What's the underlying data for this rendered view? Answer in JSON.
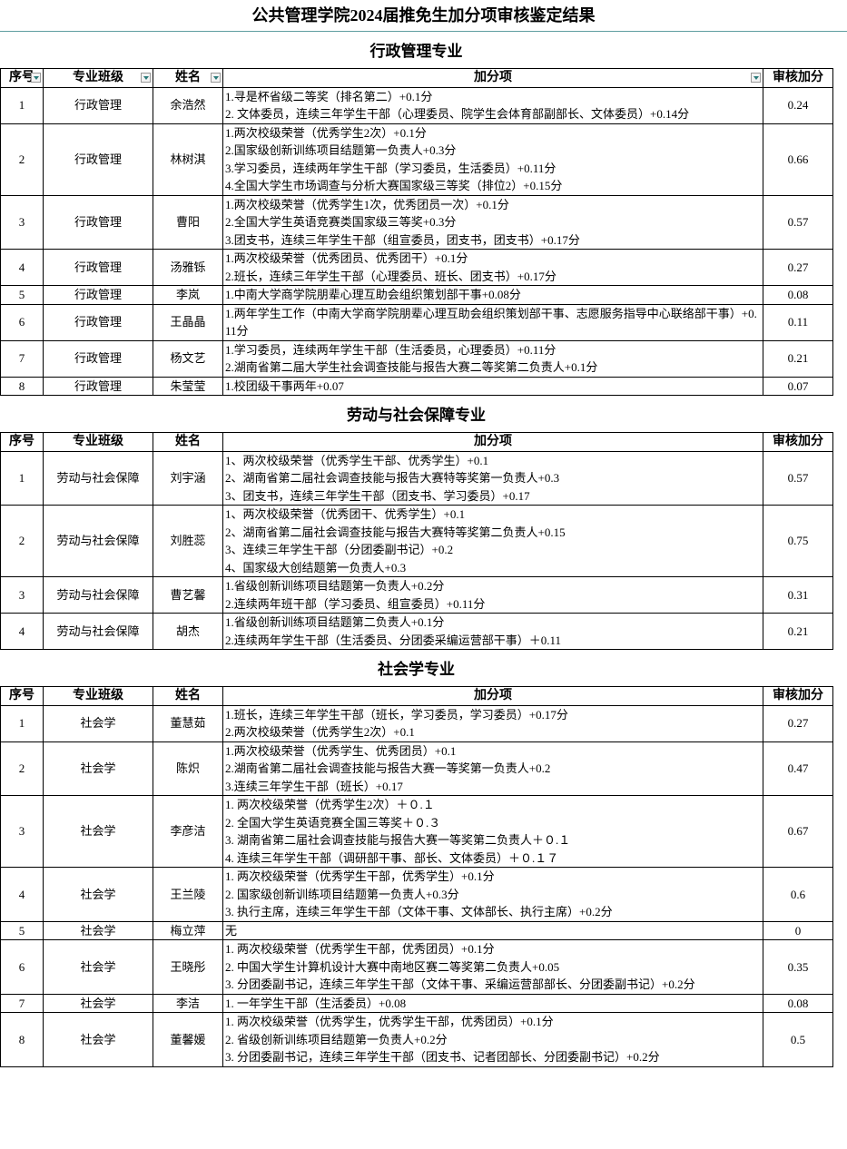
{
  "title": "公共管理学院2024届推免生加分项审核鉴定结果",
  "columns": [
    "序号",
    "专业班级",
    "姓名",
    "加分项",
    "审核加分"
  ],
  "sections": [
    {
      "title": "行政管理专业",
      "rows": [
        [
          "1",
          "行政管理",
          "余浩然",
          [
            "1.寻是杯省级二等奖（排名第二）+0.1分",
            "2. 文体委员，连续三年学生干部（心理委员、院学生会体育部副部长、文体委员）+0.14分"
          ],
          "0.24"
        ],
        [
          "2",
          "行政管理",
          "林树淇",
          [
            "1.两次校级荣誉（优秀学生2次）+0.1分",
            "2.国家级创新训练项目结题第一负责人+0.3分",
            "3.学习委员，连续两年学生干部（学习委员，生活委员）+0.11分",
            "4.全国大学生市场调查与分析大赛国家级三等奖（排位2）+0.15分"
          ],
          "0.66"
        ],
        [
          "3",
          "行政管理",
          "曹阳",
          [
            "1.两次校级荣誉（优秀学生1次，优秀团员一次）+0.1分",
            "2.全国大学生英语竞赛类国家级三等奖+0.3分",
            "3.团支书，连续三年学生干部（组宣委员，团支书，团支书）+0.17分"
          ],
          "0.57"
        ],
        [
          "4",
          "行政管理",
          "汤雅铄",
          [
            "1.两次校级荣誉（优秀团员、优秀团干）+0.1分",
            "2.班长，连续三年学生干部（心理委员、班长、团支书）+0.17分"
          ],
          "0.27"
        ],
        [
          "5",
          "行政管理",
          "李岚",
          [
            "1.中南大学商学院朋辈心理互助会组织策划部干事+0.08分"
          ],
          "0.08"
        ],
        [
          "6",
          "行政管理",
          "王晶晶",
          [
            "1.两年学生工作（中南大学商学院朋辈心理互助会组织策划部干事、志愿服务指导中心联络部干事）+0.11分"
          ],
          "0.11"
        ],
        [
          "7",
          "行政管理",
          "杨文艺",
          [
            "1.学习委员，连续两年学生干部（生活委员，心理委员）+0.11分",
            "2.湖南省第二届大学生社会调查技能与报告大赛二等奖第二负责人+0.1分"
          ],
          "0.21"
        ],
        [
          "8",
          "行政管理",
          "朱莹莹",
          [
            "1.校团级干事两年+0.07"
          ],
          "0.07"
        ]
      ]
    },
    {
      "title": "劳动与社会保障专业",
      "rows": [
        [
          "1",
          "劳动与社会保障",
          "刘宇涵",
          [
            "1、两次校级荣誉（优秀学生干部、优秀学生）+0.1",
            "2、湖南省第二届社会调查技能与报告大赛特等奖第一负责人+0.3",
            "3、团支书，连续三年学生干部（团支书、学习委员）+0.17"
          ],
          "0.57"
        ],
        [
          "2",
          "劳动与社会保障",
          "刘胜蕊",
          [
            "1、两次校级荣誉（优秀团干、优秀学生）+0.1",
            "2、湖南省第二届社会调查技能与报告大赛特等奖第二负责人+0.15",
            "3、连续三年学生干部（分团委副书记）+0.2",
            "4、国家级大创结题第一负责人+0.3"
          ],
          "0.75"
        ],
        [
          "3",
          "劳动与社会保障",
          "曹艺馨",
          [
            "1.省级创新训练项目结题第一负责人+0.2分",
            "2.连续两年班干部（学习委员、组宣委员）+0.11分"
          ],
          "0.31"
        ],
        [
          "4",
          "劳动与社会保障",
          "胡杰",
          [
            "1.省级创新训练项目结题第二负责人+0.1分",
            "2.连续两年学生干部（生活委员、分团委采编运营部干事）＋0.11"
          ],
          "0.21"
        ]
      ]
    },
    {
      "title": "社会学专业",
      "rows": [
        [
          "1",
          "社会学",
          "董慧茹",
          [
            "1.班长，连续三年学生干部（班长，学习委员，学习委员）+0.17分",
            "2.两次校级荣誉（优秀学生2次）+0.1"
          ],
          "0.27"
        ],
        [
          "2",
          "社会学",
          "陈炽",
          [
            "1.两次校级荣誉（优秀学生、优秀团员）+0.1",
            "2.湖南省第二届社会调查技能与报告大赛一等奖第一负责人+0.2",
            "3.连续三年学生干部（班长）+0.17"
          ],
          "0.47"
        ],
        [
          "3",
          "社会学",
          "李彦洁",
          [
            "1. 两次校级荣誉（优秀学生2次）＋０.１",
            "2. 全国大学生英语竞赛全国三等奖＋０.３",
            "3. 湖南省第二届社会调查技能与报告大赛一等奖第二负责人＋０.１",
            "4. 连续三年学生干部（调研部干事、部长、文体委员）＋０.１７"
          ],
          "0.67"
        ],
        [
          "4",
          "社会学",
          "王兰陵",
          [
            "1. 两次校级荣誉（优秀学生干部，优秀学生）+0.1分",
            "2. 国家级创新训练项目结题第一负责人+0.3分",
            "3. 执行主席，连续三年学生干部（文体干事、文体部长、执行主席）+0.2分"
          ],
          "0.6"
        ],
        [
          "5",
          "社会学",
          "梅立萍",
          [
            "无"
          ],
          "0"
        ],
        [
          "6",
          "社会学",
          "王晓彤",
          [
            "1. 两次校级荣誉（优秀学生干部，优秀团员）+0.1分",
            "2. 中国大学生计算机设计大赛中南地区赛二等奖第二负责人+0.05",
            "3. 分团委副书记，连续三年学生干部（文体干事、采编运营部部长、分团委副书记）+0.2分"
          ],
          "0.35"
        ],
        [
          "7",
          "社会学",
          "李洁",
          [
            "1. 一年学生干部（生活委员）+0.08"
          ],
          "0.08"
        ],
        [
          "8",
          "社会学",
          "董馨媛",
          [
            "1. 两次校级荣誉（优秀学生，优秀学生干部，优秀团员）+0.1分",
            "2. 省级创新训练项目结题第一负责人+0.2分",
            "3. 分团委副书记，连续三年学生干部（团支书、记者团部长、分团委副书记）+0.2分"
          ],
          "0.5"
        ]
      ]
    }
  ]
}
